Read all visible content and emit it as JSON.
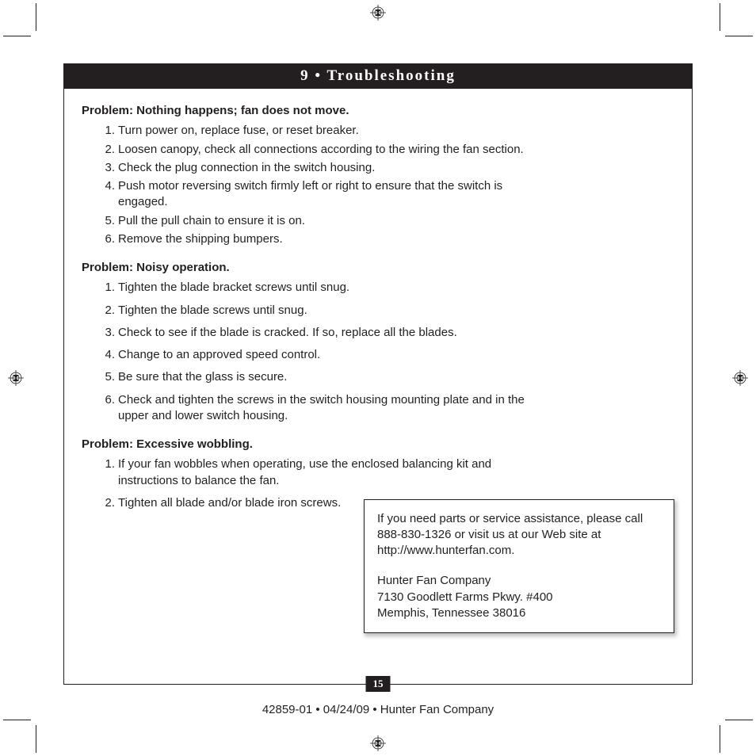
{
  "section_header": "9 • Troubleshooting",
  "problems": [
    {
      "title": "Problem:  Nothing happens; fan does not move.",
      "loose": false,
      "steps": [
        "Turn power on, replace fuse, or reset breaker.",
        "Loosen canopy, check all connections according to the wiring the fan section.",
        "Check the plug connection in the switch housing.",
        "Push motor reversing switch firmly left or right to ensure that the switch is engaged.",
        "Pull the pull chain to ensure it is on.",
        "Remove the shipping bumpers."
      ]
    },
    {
      "title": "Problem:  Noisy operation.",
      "loose": true,
      "steps": [
        "Tighten the blade bracket screws until snug.",
        "Tighten the blade screws until snug.",
        "Check to see if the blade is cracked.  If so, replace all the blades.",
        "Change to an approved speed control.",
        "Be sure that the glass is secure.",
        "Check and tighten the screws in the switch housing mounting plate and in the upper and lower switch housing."
      ]
    },
    {
      "title": "Problem:  Excessive wobbling.",
      "loose": true,
      "steps": [
        "If your fan wobbles when operating, use the enclosed balancing kit and instructions to balance the fan.",
        "Tighten all blade and/or blade iron screws."
      ]
    }
  ],
  "info_box": {
    "p1": "If you need parts or service assistance, please call 888-830-1326 or visit us at our Web site at http://www.hunterfan.com.",
    "p2_l1": "Hunter Fan Company",
    "p2_l2": "7130 Goodlett Farms Pkwy. #400",
    "p2_l3": "Memphis, Tennessee 38016"
  },
  "page_number": "15",
  "footer": "42859-01  •  04/24/09  •  Hunter Fan Company",
  "colors": {
    "black": "#231f20",
    "white": "#ffffff"
  }
}
